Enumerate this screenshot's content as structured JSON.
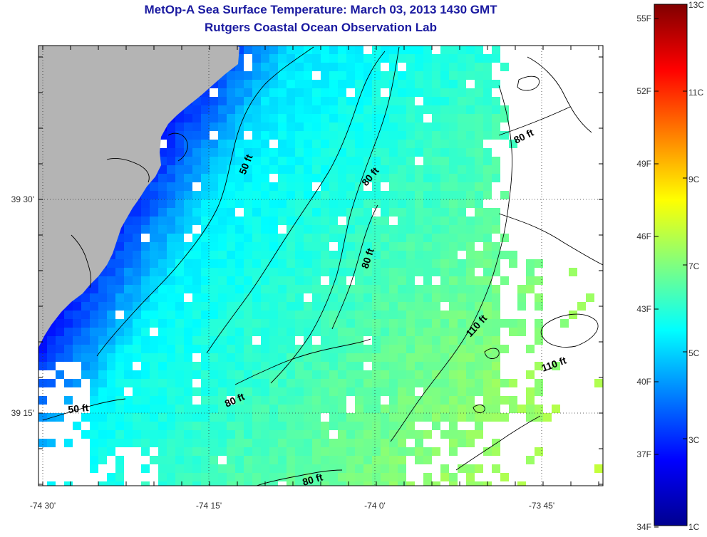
{
  "header": {
    "title": "MetOp-A Sea Surface Temperature:  March 03, 2013 1430 GMT",
    "subtitle": "Rutgers Coastal Ocean Observation Lab"
  },
  "axes": {
    "x_labels": [
      "-74 30'",
      "-74 15'",
      "-74 0'",
      "-73 45'"
    ],
    "y_labels": [
      "39 30'",
      "39 15'"
    ]
  },
  "colorbar": {
    "fahrenheit_labels": [
      "55F",
      "52F",
      "49F",
      "46F",
      "43F",
      "40F",
      "37F",
      "34F"
    ],
    "celsius_labels": [
      "13C",
      "11C",
      "9C",
      "7C",
      "5C",
      "3C",
      "1C"
    ]
  },
  "contours": {
    "labels": [
      "50 ft",
      "80 ft",
      "80 ft",
      "80 ft",
      "80 ft",
      "110 ft",
      "110 ft",
      "50 ft",
      "80 ft"
    ]
  },
  "colors": {
    "title": "#1a1aa0",
    "land": "#b4b4b4",
    "no_data": "#ffffff"
  }
}
